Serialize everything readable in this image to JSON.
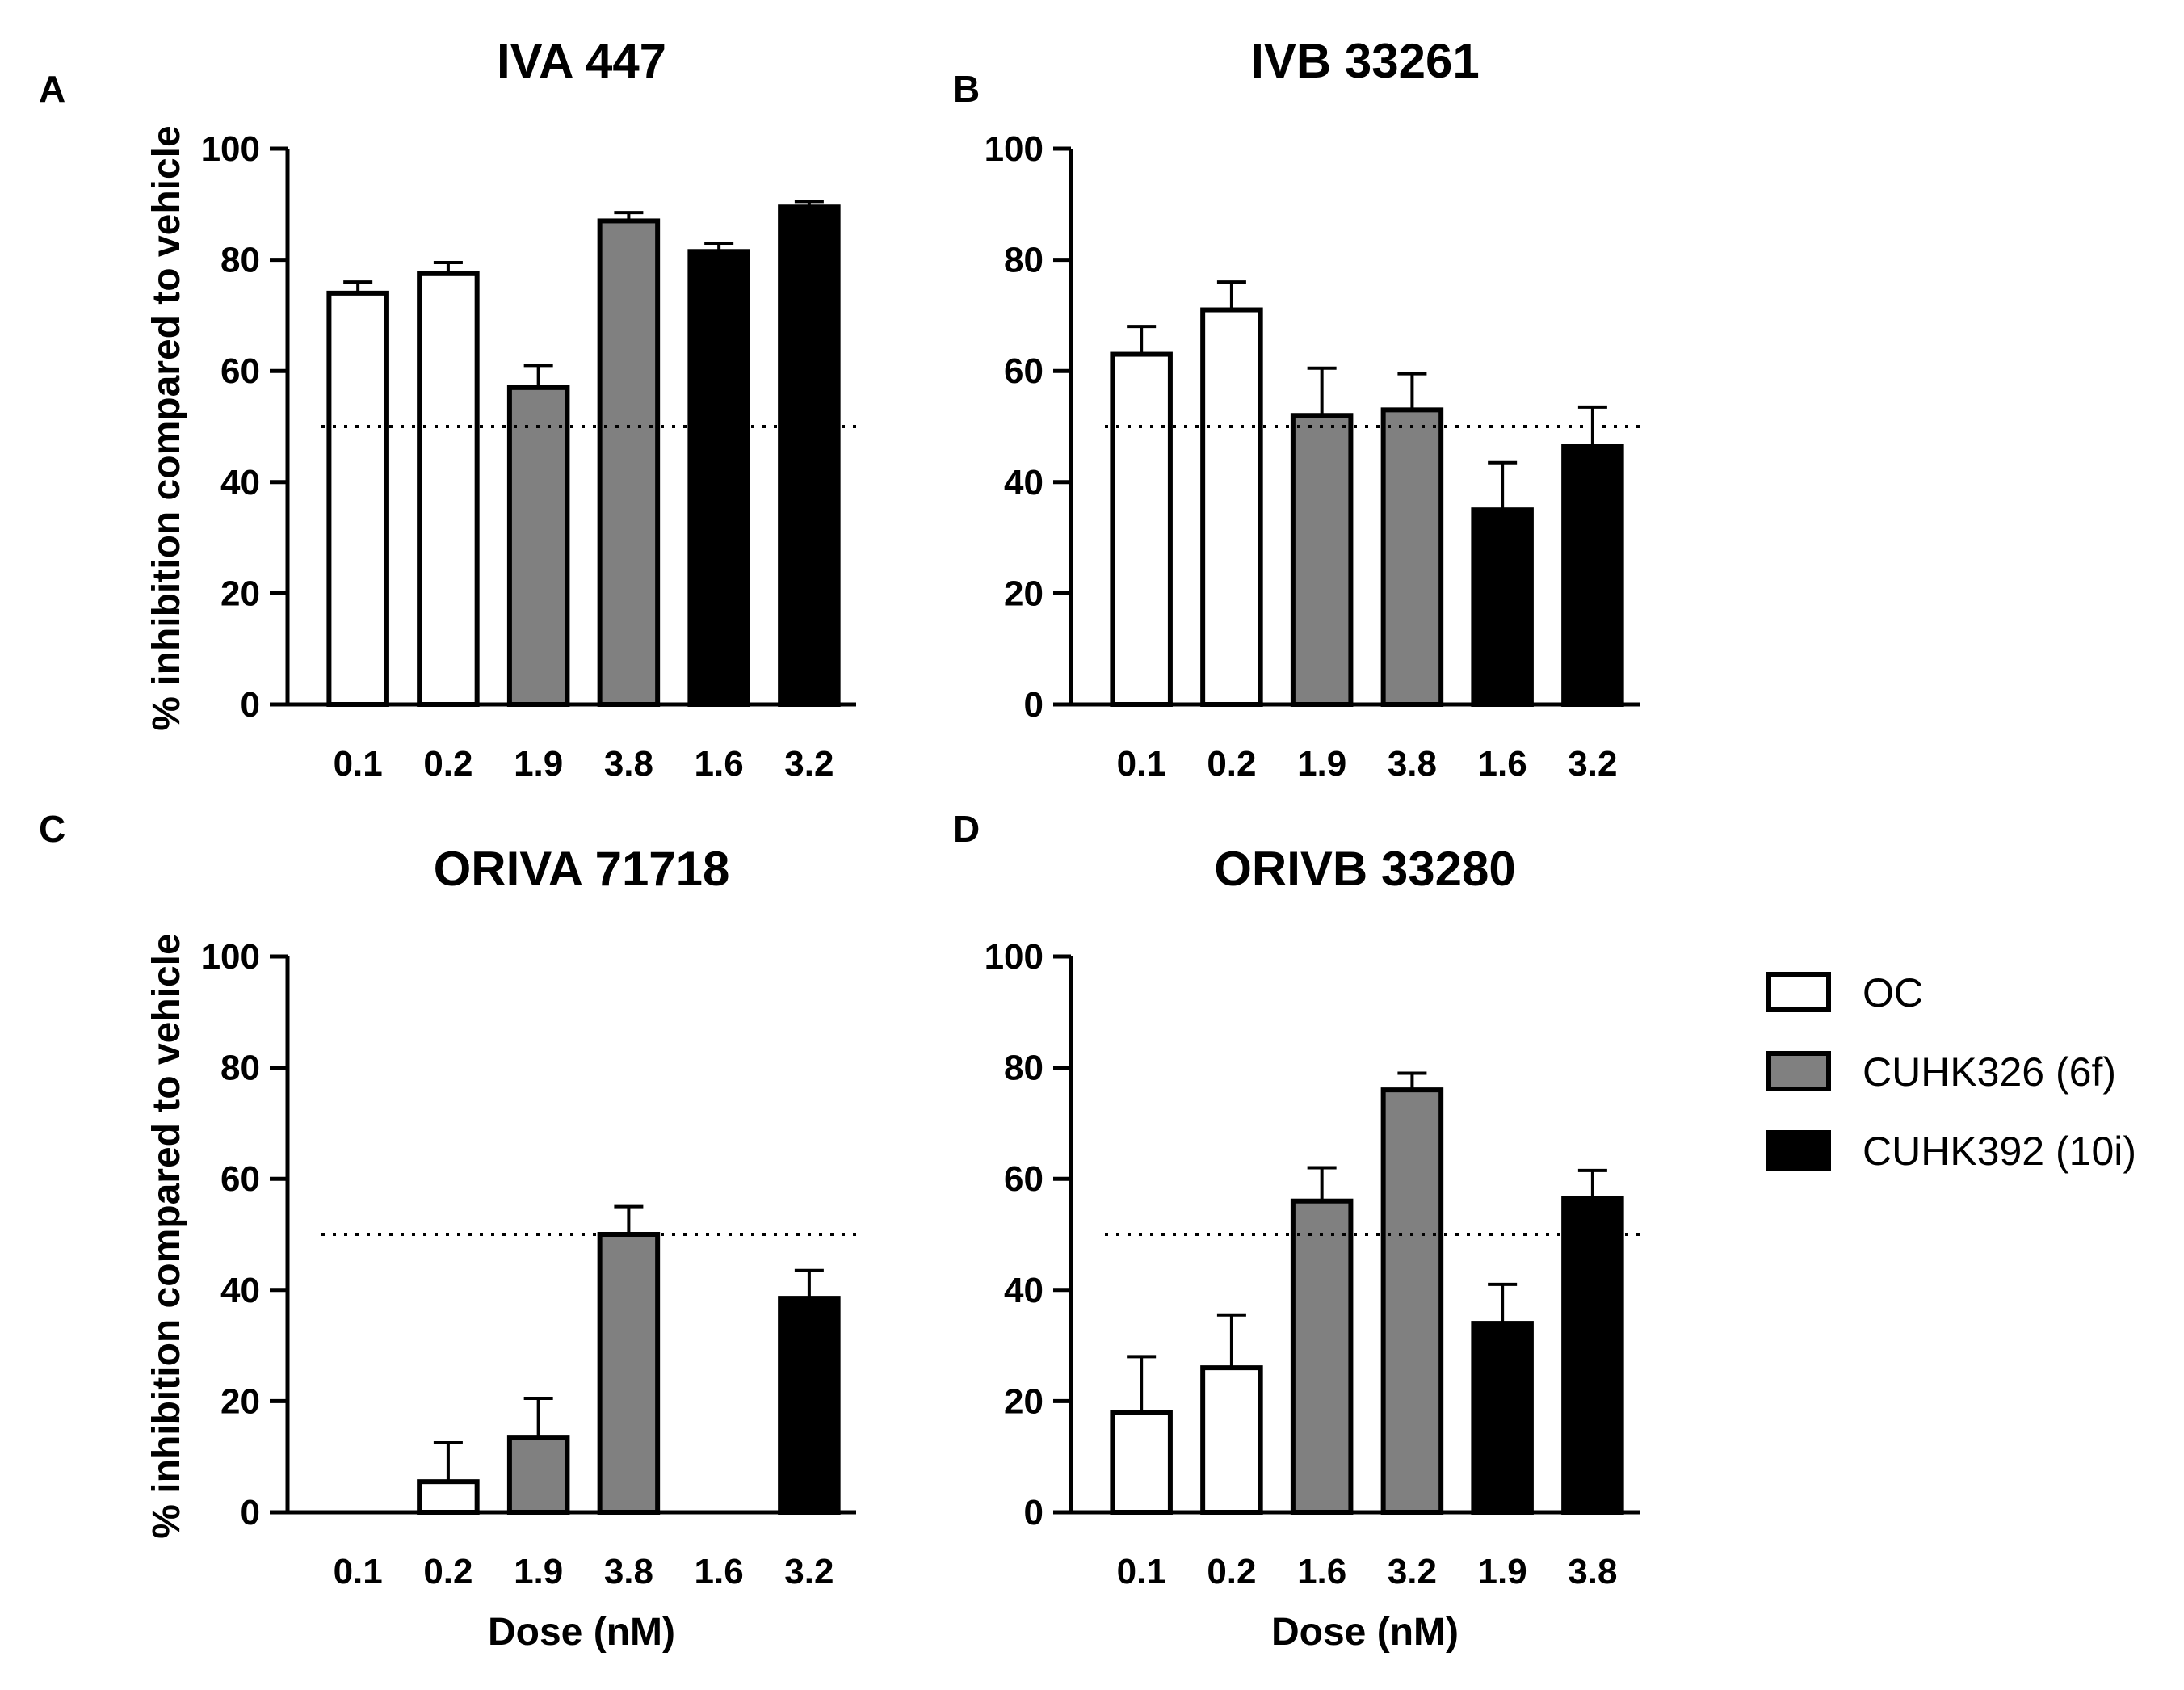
{
  "figure": {
    "ylabel": "% inhibition compared to vehicle",
    "xlabel": "Dose (nM)",
    "threshold": 50
  },
  "legend": {
    "items": [
      {
        "label": "OC",
        "color": "#ffffff"
      },
      {
        "label": "CUHK326 (6f)",
        "color": "#808080"
      },
      {
        "label": "CUHK392 (10i)",
        "color": "#000000"
      }
    ]
  },
  "chart_data": [
    {
      "panel": "A",
      "type": "bar",
      "title": "IVA 447",
      "categories": [
        "0.1",
        "0.2",
        "1.9",
        "3.8",
        "1.6",
        "3.2"
      ],
      "groups": [
        "OC",
        "OC",
        "CUHK326 (6f)",
        "CUHK326 (6f)",
        "CUHK392 (10i)",
        "CUHK392 (10i)"
      ],
      "values": [
        74,
        77.5,
        57,
        87,
        81.5,
        89.5
      ],
      "errors": [
        2,
        2,
        4,
        1.5,
        1.5,
        1
      ],
      "ylim": [
        0,
        100
      ],
      "yticks": [
        0,
        20,
        40,
        60,
        80,
        100
      ],
      "reference_line": 50,
      "ylabel": "% inhibition compared to vehicle",
      "xlabel": ""
    },
    {
      "panel": "B",
      "type": "bar",
      "title": "IVB 33261",
      "categories": [
        "0.1",
        "0.2",
        "1.9",
        "3.8",
        "1.6",
        "3.2"
      ],
      "groups": [
        "OC",
        "OC",
        "CUHK326 (6f)",
        "CUHK326 (6f)",
        "CUHK392 (10i)",
        "CUHK392 (10i)"
      ],
      "values": [
        63,
        71,
        52,
        53,
        35,
        46.5
      ],
      "errors": [
        5,
        5,
        8.5,
        6.5,
        8.5,
        7
      ],
      "ylim": [
        0,
        100
      ],
      "yticks": [
        0,
        20,
        40,
        60,
        80,
        100
      ],
      "reference_line": 50,
      "ylabel": "",
      "xlabel": ""
    },
    {
      "panel": "C",
      "type": "bar",
      "title": "ORIVA 71718",
      "categories": [
        "0.1",
        "0.2",
        "1.9",
        "3.8",
        "1.6",
        "3.2"
      ],
      "groups": [
        "OC",
        "OC",
        "CUHK326 (6f)",
        "CUHK326 (6f)",
        "CUHK392 (10i)",
        "CUHK392 (10i)"
      ],
      "values": [
        0,
        5.5,
        13.5,
        50,
        0,
        38.5
      ],
      "errors": [
        0,
        7,
        7,
        5,
        0,
        5
      ],
      "ylim": [
        0,
        100
      ],
      "yticks": [
        0,
        20,
        40,
        60,
        80,
        100
      ],
      "reference_line": 50,
      "ylabel": "% inhibition compared to vehicle",
      "xlabel": "Dose (nM)"
    },
    {
      "panel": "D",
      "type": "bar",
      "title": "ORIVB 33280",
      "categories": [
        "0.1",
        "0.2",
        "1.6",
        "3.2",
        "1.9",
        "3.8"
      ],
      "groups": [
        "OC",
        "OC",
        "CUHK326 (6f)",
        "CUHK326 (6f)",
        "CUHK392 (10i)",
        "CUHK392 (10i)"
      ],
      "values": [
        18,
        26,
        56,
        76,
        34,
        56.5
      ],
      "errors": [
        10,
        9.5,
        6,
        3,
        7,
        5
      ],
      "ylim": [
        0,
        100
      ],
      "yticks": [
        0,
        20,
        40,
        60,
        80,
        100
      ],
      "reference_line": 50,
      "ylabel": "",
      "xlabel": "Dose (nM)"
    }
  ]
}
